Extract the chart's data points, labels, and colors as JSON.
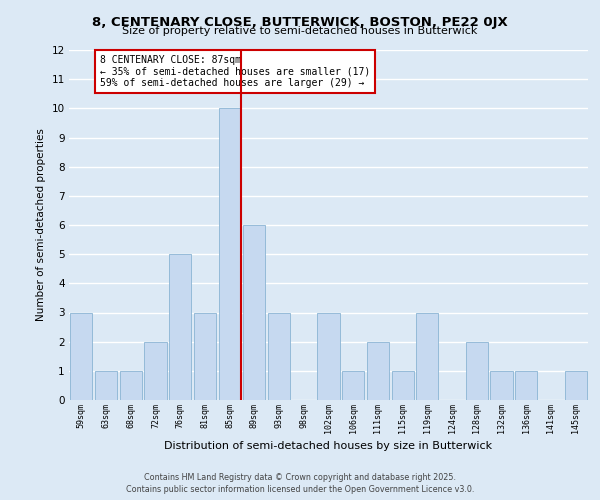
{
  "title": "8, CENTENARY CLOSE, BUTTERWICK, BOSTON, PE22 0JX",
  "subtitle": "Size of property relative to semi-detached houses in Butterwick",
  "xlabel": "Distribution of semi-detached houses by size in Butterwick",
  "ylabel": "Number of semi-detached properties",
  "bin_labels": [
    "59sqm",
    "63sqm",
    "68sqm",
    "72sqm",
    "76sqm",
    "81sqm",
    "85sqm",
    "89sqm",
    "93sqm",
    "98sqm",
    "102sqm",
    "106sqm",
    "111sqm",
    "115sqm",
    "119sqm",
    "124sqm",
    "128sqm",
    "132sqm",
    "136sqm",
    "141sqm",
    "145sqm"
  ],
  "bar_heights": [
    3,
    1,
    1,
    2,
    5,
    3,
    10,
    6,
    3,
    0,
    3,
    1,
    2,
    1,
    3,
    0,
    2,
    1,
    1,
    0,
    1
  ],
  "vline_bar_index": 6,
  "vline_color": "#cc0000",
  "bar_color": "#c6d9f0",
  "annotation_title": "8 CENTENARY CLOSE: 87sqm",
  "annotation_line1": "← 35% of semi-detached houses are smaller (17)",
  "annotation_line2": "59% of semi-detached houses are larger (29) →",
  "ylim": [
    0,
    12
  ],
  "yticks": [
    0,
    1,
    2,
    3,
    4,
    5,
    6,
    7,
    8,
    9,
    10,
    11,
    12
  ],
  "background_color": "#dce9f5",
  "grid_color": "#ffffff",
  "footer1": "Contains HM Land Registry data © Crown copyright and database right 2025.",
  "footer2": "Contains public sector information licensed under the Open Government Licence v3.0."
}
